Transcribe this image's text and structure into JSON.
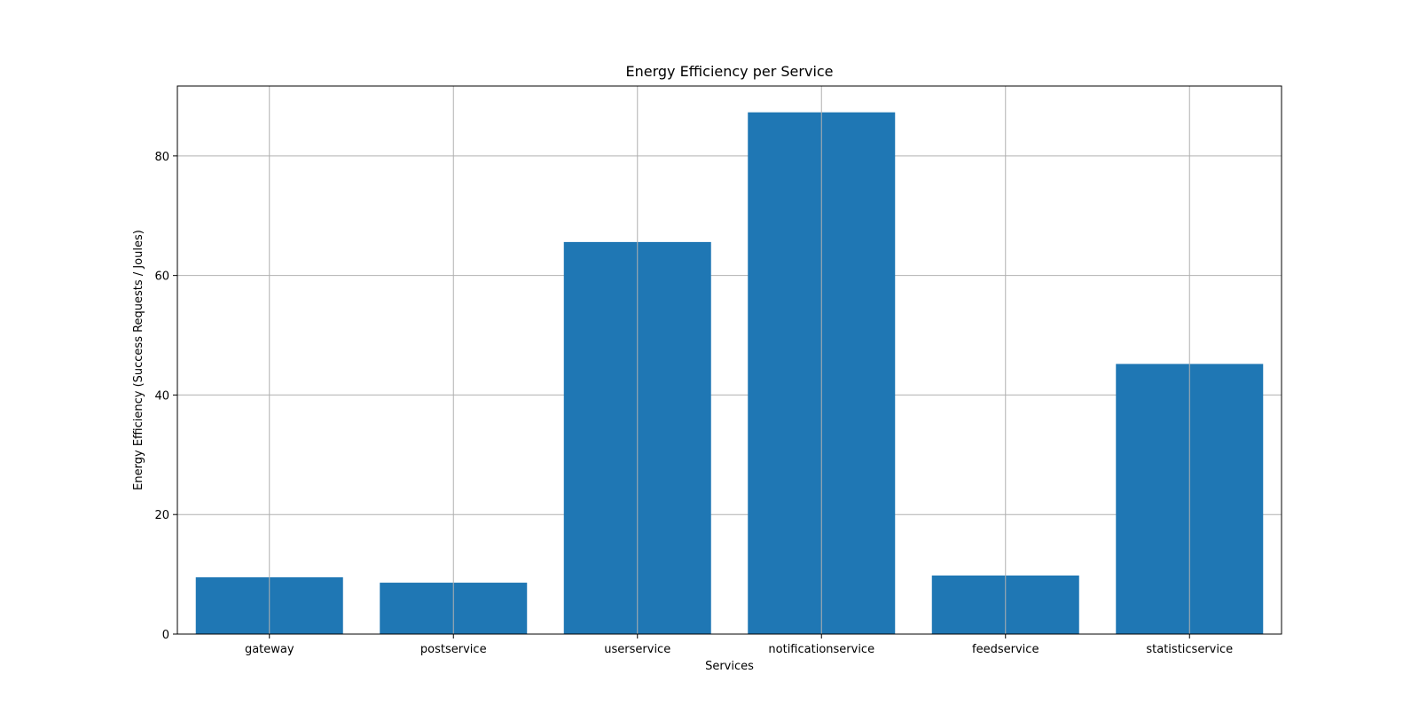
{
  "chart_data": {
    "type": "bar",
    "title": "Energy Efficiency per Service",
    "xlabel": "Services",
    "ylabel": "Energy Efficiency (Success Requests / Joules)",
    "categories": [
      "gateway",
      "postservice",
      "userservice",
      "notificationservice",
      "feedservice",
      "statisticservice"
    ],
    "values": [
      9.5,
      8.6,
      65.6,
      87.3,
      9.8,
      45.2
    ],
    "ylim": [
      0,
      91.7
    ],
    "yticks": [
      0,
      20,
      40,
      60,
      80
    ],
    "grid": true,
    "bar_color": "#1f77b4",
    "grid_color": "#b0b0b0"
  }
}
